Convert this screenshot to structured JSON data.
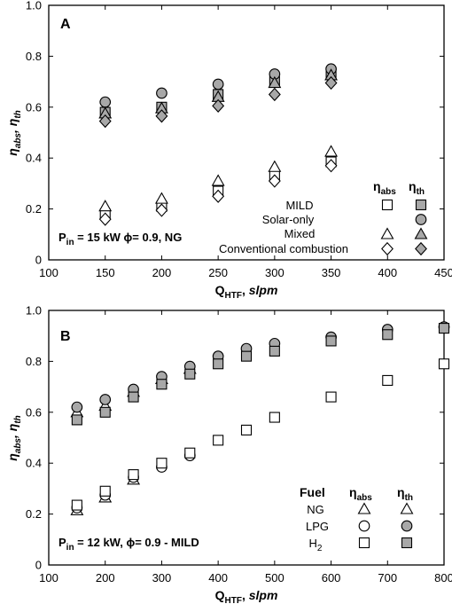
{
  "chart_data": [
    {
      "type": "scatter",
      "panel_label": "A",
      "x_label_main": "Q",
      "x_label_sub": "HTF",
      "x_label_unit": "slpm",
      "y_label": "ηabs, ηth",
      "y_label_parts": {
        "eta1": "η",
        "sub1": "abs",
        "sep": ", ",
        "eta2": "η",
        "sub2": "th"
      },
      "xlim": [
        100,
        450
      ],
      "ylim": [
        0,
        1.0
      ],
      "x_ticks": [
        "100",
        "150",
        "200",
        "250",
        "300",
        "350",
        "400",
        "450"
      ],
      "y_ticks": [
        "0",
        "0.2",
        "0.4",
        "0.6",
        "0.8",
        "1.0"
      ],
      "annotation": {
        "p": "P",
        "p_sub": "in",
        "rest": " = 15 kW ϕ= 0.9, NG"
      },
      "legend": {
        "header_abs": {
          "eta": "η",
          "sub": "abs"
        },
        "header_th": {
          "eta": "η",
          "sub": "th"
        },
        "entries": [
          {
            "name": "MILD",
            "abs_marker": "square-open",
            "th_marker": "square-filled"
          },
          {
            "name": "Solar-only",
            "abs_marker": "",
            "th_marker": "circle-filled"
          },
          {
            "name": "Mixed",
            "abs_marker": "triangle-open",
            "th_marker": "triangle-filled"
          },
          {
            "name": "Conventional combustion",
            "abs_marker": "diamond-open",
            "th_marker": "diamond-filled"
          }
        ]
      },
      "x": [
        150,
        200,
        250,
        300,
        350
      ],
      "series": [
        {
          "name": "MILD",
          "metric": "eta_th",
          "marker": "square-filled",
          "values": [
            0.58,
            0.6,
            0.65,
            0.7,
            0.73
          ]
        },
        {
          "name": "Solar-only",
          "metric": "eta_th",
          "marker": "circle-filled",
          "values": [
            0.62,
            0.655,
            0.69,
            0.73,
            0.75
          ]
        },
        {
          "name": "Mixed",
          "metric": "eta_th",
          "marker": "triangle-filled",
          "values": [
            0.575,
            0.595,
            0.64,
            0.695,
            0.725
          ]
        },
        {
          "name": "Conventional combustion",
          "metric": "eta_th",
          "marker": "diamond-filled",
          "values": [
            0.545,
            0.565,
            0.605,
            0.65,
            0.695
          ]
        },
        {
          "name": "MILD",
          "metric": "eta_abs",
          "marker": "square-open",
          "values": [
            0.18,
            0.21,
            0.27,
            0.33,
            0.385
          ]
        },
        {
          "name": "Mixed",
          "metric": "eta_abs",
          "marker": "triangle-open",
          "values": [
            0.21,
            0.24,
            0.31,
            0.365,
            0.425
          ]
        },
        {
          "name": "Conventional combustion",
          "metric": "eta_abs",
          "marker": "diamond-open",
          "values": [
            0.16,
            0.195,
            0.25,
            0.31,
            0.37
          ]
        }
      ]
    },
    {
      "type": "scatter",
      "panel_label": "B",
      "x_label_main": "Q",
      "x_label_sub": "HTF",
      "x_label_unit": "slpm",
      "y_label": "ηabs, ηth",
      "y_label_parts": {
        "eta1": "η",
        "sub1": "abs",
        "sep": ", ",
        "eta2": "η",
        "sub2": "th"
      },
      "xlim": [
        100,
        800
      ],
      "ylim": [
        0,
        1.0
      ],
      "x_ticks": [
        "100",
        "200",
        "300",
        "400",
        "500",
        "600",
        "700",
        "800"
      ],
      "y_ticks": [
        "0",
        "0.2",
        "0.4",
        "0.6",
        "0.8",
        "1.0"
      ],
      "annotation": {
        "p": "P",
        "p_sub": "in",
        "rest": " = 12 kW, ϕ= 0.9 - MILD"
      },
      "legend": {
        "fuel_header": "Fuel",
        "header_abs": {
          "eta": "η",
          "sub": "abs"
        },
        "header_th": {
          "eta": "η",
          "sub": "th"
        },
        "entries": [
          {
            "name": "NG",
            "abs_marker": "triangle-open",
            "th_marker": "triangle-open"
          },
          {
            "name": "LPG",
            "abs_marker": "circle-open",
            "th_marker": "circle-filled"
          },
          {
            "name": "H",
            "name_sub": "2",
            "abs_marker": "square-open",
            "th_marker": "square-filled"
          }
        ]
      },
      "series": [
        {
          "name": "NG",
          "metric": "eta_th",
          "marker": "triangle-open",
          "x": [
            150,
            200,
            250,
            300,
            350
          ],
          "values": [
            0.6,
            0.625,
            0.68,
            0.73,
            0.77
          ]
        },
        {
          "name": "LPG",
          "metric": "eta_th",
          "marker": "circle-filled",
          "x": [
            150,
            200,
            250,
            300,
            350,
            400,
            450,
            500,
            600,
            700,
            800
          ],
          "values": [
            0.62,
            0.65,
            0.69,
            0.74,
            0.78,
            0.82,
            0.85,
            0.87,
            0.895,
            0.925,
            0.935
          ]
        },
        {
          "name": "H2",
          "metric": "eta_th",
          "marker": "square-filled",
          "x": [
            150,
            200,
            250,
            300,
            350,
            400,
            450,
            500,
            600,
            700,
            800
          ],
          "values": [
            0.57,
            0.6,
            0.66,
            0.71,
            0.75,
            0.79,
            0.82,
            0.84,
            0.88,
            0.905,
            0.93
          ]
        },
        {
          "name": "NG",
          "metric": "eta_abs",
          "marker": "triangle-open",
          "x": [
            150,
            200,
            250
          ],
          "values": [
            0.215,
            0.265,
            0.335
          ]
        },
        {
          "name": "LPG",
          "metric": "eta_abs",
          "marker": "circle-open",
          "x": [
            150,
            200,
            250,
            300,
            350
          ],
          "values": [
            0.225,
            0.275,
            0.345,
            0.385,
            0.43
          ]
        },
        {
          "name": "H2",
          "metric": "eta_abs",
          "marker": "square-open",
          "x": [
            150,
            200,
            250,
            300,
            350,
            400,
            450,
            500,
            600,
            700,
            800
          ],
          "values": [
            0.235,
            0.29,
            0.355,
            0.4,
            0.44,
            0.49,
            0.53,
            0.58,
            0.66,
            0.725,
            0.79
          ]
        }
      ]
    }
  ]
}
